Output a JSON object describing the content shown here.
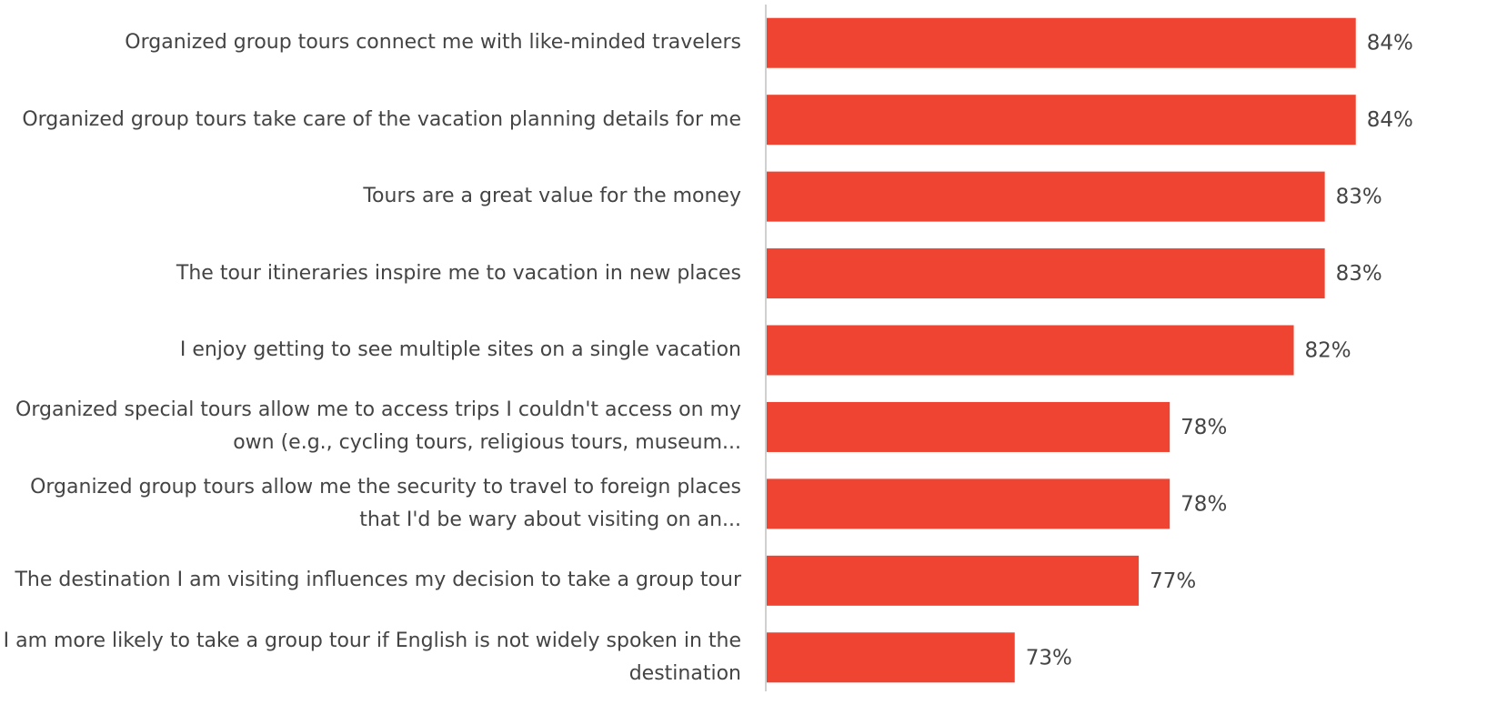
{
  "chart_data": {
    "type": "bar",
    "orientation": "horizontal",
    "categories": [
      "Organized group tours connect me with like-minded travelers",
      "Organized group tours take care of the vacation planning details for me",
      "Tours are a great value for the money",
      "The tour itineraries inspire me to vacation in new places",
      "I enjoy getting to see multiple sites on a single vacation",
      "Organized special tours allow me to access trips I couldn't access on my own (e.g., cycling tours, religious tours, museum...",
      "Organized group tours allow me the security to travel to foreign places that I'd be wary about visiting on an...",
      "The destination I am visiting influences my decision to take a group tour",
      "I am more likely to take a group tour if English is not widely spoken in the destination"
    ],
    "values": [
      84,
      84,
      83,
      83,
      82,
      78,
      78,
      77,
      73
    ],
    "value_labels": [
      "84%",
      "84%",
      "83%",
      "83%",
      "82%",
      "78%",
      "78%",
      "77%",
      "73%"
    ],
    "color": "#ee4431",
    "xlim": [
      65,
      87
    ]
  }
}
